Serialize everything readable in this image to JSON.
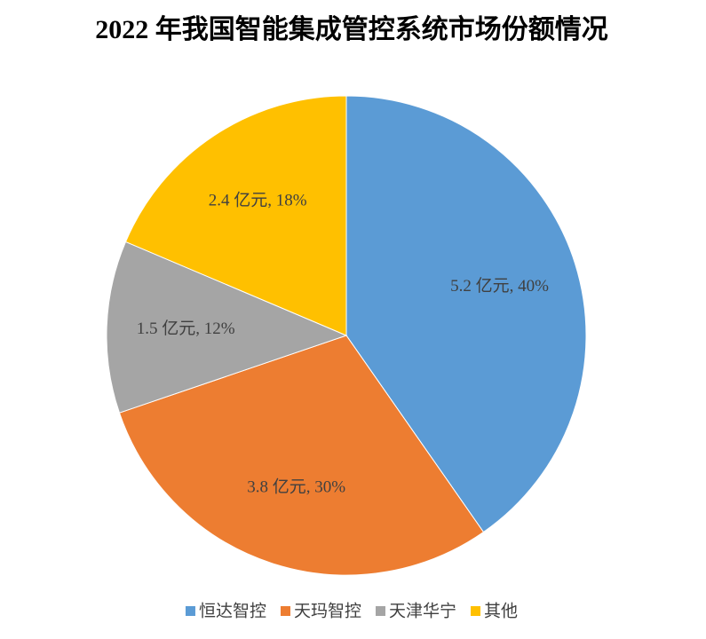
{
  "chart_data": {
    "type": "pie",
    "title": "2022 年我国智能集成管控系统市场份额情况",
    "categories": [
      "恒达智控",
      "天玛智控",
      "天津华宁",
      "其他"
    ],
    "values": [
      5.2,
      3.8,
      1.5,
      2.4
    ],
    "value_labels": [
      "5.2 亿元, 40%",
      "3.8 亿元, 30%",
      "1.5 亿元, 12%",
      "2.4 亿元, 18%"
    ],
    "colors": [
      "#5b9bd5",
      "#ed7d31",
      "#a5a5a5",
      "#ffc000"
    ],
    "legend": "bottom"
  }
}
